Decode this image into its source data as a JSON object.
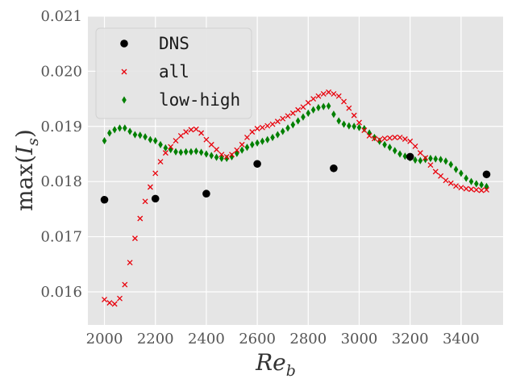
{
  "chart_data": {
    "type": "scatter",
    "title": "",
    "xlabel": "Re_b",
    "ylabel": "max(I_s)",
    "xlim": [
      1935,
      3565
    ],
    "ylim": [
      0.0154,
      0.021
    ],
    "x_ticks": [
      2000,
      2200,
      2400,
      2600,
      2800,
      3000,
      3200,
      3400
    ],
    "x_tick_labels": [
      "2000",
      "2200",
      "2400",
      "2600",
      "2800",
      "3000",
      "3200",
      "3400"
    ],
    "y_ticks": [
      0.016,
      0.017,
      0.018,
      0.019,
      0.02,
      0.021
    ],
    "y_tick_labels": [
      "0.016",
      "0.017",
      "0.018",
      "0.019",
      "0.020",
      "0.021"
    ],
    "grid": true,
    "legend_position": "top-left",
    "series": [
      {
        "name": "DNS",
        "marker": "circle",
        "color": "#000000",
        "x": [
          2000,
          2200,
          2400,
          2600,
          2900,
          3200,
          3500
        ],
        "y": [
          0.01767,
          0.01769,
          0.01778,
          0.01832,
          0.01824,
          0.01845,
          0.01813
        ]
      },
      {
        "name": "all",
        "marker": "x",
        "color": "#e8000b",
        "x": [
          2000,
          2020,
          2040,
          2060,
          2080,
          2100,
          2120,
          2140,
          2160,
          2180,
          2200,
          2220,
          2240,
          2260,
          2280,
          2300,
          2320,
          2340,
          2360,
          2380,
          2400,
          2420,
          2440,
          2460,
          2480,
          2500,
          2520,
          2540,
          2560,
          2580,
          2600,
          2620,
          2640,
          2660,
          2680,
          2700,
          2720,
          2740,
          2760,
          2780,
          2800,
          2820,
          2840,
          2860,
          2880,
          2900,
          2920,
          2940,
          2960,
          2980,
          3000,
          3020,
          3040,
          3060,
          3080,
          3100,
          3120,
          3140,
          3160,
          3180,
          3200,
          3220,
          3240,
          3260,
          3280,
          3300,
          3320,
          3340,
          3360,
          3380,
          3400,
          3420,
          3440,
          3460,
          3480,
          3500
        ],
        "y": [
          0.01586,
          0.0158,
          0.01578,
          0.01588,
          0.01613,
          0.01653,
          0.01697,
          0.01733,
          0.01764,
          0.0179,
          0.01815,
          0.01836,
          0.01852,
          0.01863,
          0.01874,
          0.01883,
          0.0189,
          0.01894,
          0.01895,
          0.01888,
          0.01876,
          0.01867,
          0.01858,
          0.01849,
          0.01845,
          0.01849,
          0.01857,
          0.01867,
          0.0188,
          0.0189,
          0.01896,
          0.01898,
          0.01901,
          0.01904,
          0.01909,
          0.01914,
          0.01919,
          0.01924,
          0.0193,
          0.01935,
          0.01943,
          0.0195,
          0.01955,
          0.01959,
          0.01962,
          0.01959,
          0.01955,
          0.01945,
          0.01933,
          0.0192,
          0.01907,
          0.01893,
          0.01883,
          0.01878,
          0.01876,
          0.01878,
          0.01879,
          0.0188,
          0.0188,
          0.01877,
          0.01873,
          0.01864,
          0.01852,
          0.01843,
          0.0183,
          0.01818,
          0.0181,
          0.01802,
          0.01797,
          0.01792,
          0.01789,
          0.01787,
          0.01786,
          0.01785,
          0.01784,
          0.01785
        ]
      },
      {
        "name": "low-high",
        "marker": "thin_diamond",
        "color": "#008000",
        "x": [
          2000,
          2020,
          2040,
          2060,
          2080,
          2100,
          2120,
          2140,
          2160,
          2180,
          2200,
          2220,
          2240,
          2260,
          2280,
          2300,
          2320,
          2340,
          2360,
          2380,
          2400,
          2420,
          2440,
          2460,
          2480,
          2500,
          2520,
          2540,
          2560,
          2580,
          2600,
          2620,
          2640,
          2660,
          2680,
          2700,
          2720,
          2740,
          2760,
          2780,
          2800,
          2820,
          2840,
          2860,
          2880,
          2900,
          2920,
          2940,
          2960,
          2980,
          3000,
          3020,
          3040,
          3060,
          3080,
          3100,
          3120,
          3140,
          3160,
          3180,
          3200,
          3220,
          3240,
          3260,
          3280,
          3300,
          3320,
          3340,
          3360,
          3380,
          3400,
          3420,
          3440,
          3460,
          3480,
          3500
        ],
        "y": [
          0.01874,
          0.01888,
          0.01894,
          0.01897,
          0.01897,
          0.01891,
          0.01885,
          0.01884,
          0.01881,
          0.01876,
          0.01874,
          0.01867,
          0.01861,
          0.01858,
          0.01854,
          0.01853,
          0.01854,
          0.01854,
          0.01855,
          0.01853,
          0.0185,
          0.01847,
          0.01844,
          0.01842,
          0.01842,
          0.01845,
          0.01851,
          0.01857,
          0.01862,
          0.01867,
          0.0187,
          0.01873,
          0.01876,
          0.0188,
          0.01885,
          0.01891,
          0.01897,
          0.01903,
          0.0191,
          0.01917,
          0.01924,
          0.0193,
          0.01934,
          0.01936,
          0.01937,
          0.01922,
          0.0191,
          0.01904,
          0.01901,
          0.019,
          0.01898,
          0.01896,
          0.01888,
          0.0188,
          0.01873,
          0.01867,
          0.01862,
          0.01856,
          0.0185,
          0.01846,
          0.01843,
          0.01839,
          0.01838,
          0.0184,
          0.01842,
          0.01841,
          0.0184,
          0.01837,
          0.01831,
          0.01822,
          0.01815,
          0.01806,
          0.018,
          0.01796,
          0.01794,
          0.01791
        ]
      }
    ]
  }
}
